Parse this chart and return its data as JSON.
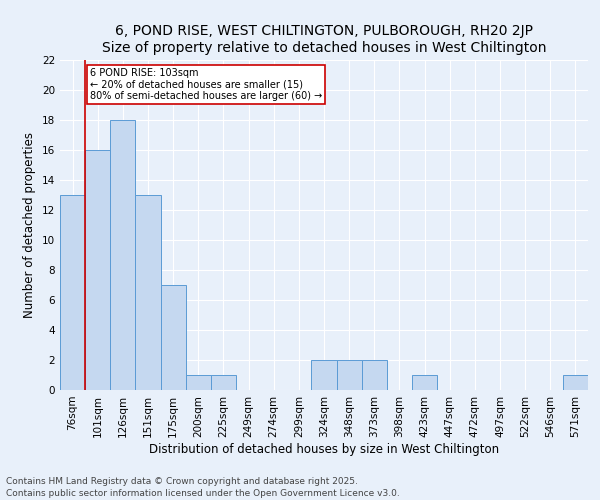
{
  "title1": "6, POND RISE, WEST CHILTINGTON, PULBOROUGH, RH20 2JP",
  "title2": "Size of property relative to detached houses in West Chiltington",
  "xlabel": "Distribution of detached houses by size in West Chiltington",
  "ylabel": "Number of detached properties",
  "categories": [
    "76sqm",
    "101sqm",
    "126sqm",
    "151sqm",
    "175sqm",
    "200sqm",
    "225sqm",
    "249sqm",
    "274sqm",
    "299sqm",
    "324sqm",
    "348sqm",
    "373sqm",
    "398sqm",
    "423sqm",
    "447sqm",
    "472sqm",
    "497sqm",
    "522sqm",
    "546sqm",
    "571sqm"
  ],
  "values": [
    13,
    16,
    18,
    13,
    7,
    1,
    1,
    0,
    0,
    0,
    2,
    2,
    2,
    0,
    1,
    0,
    0,
    0,
    0,
    0,
    1
  ],
  "bar_color": "#c5d8f0",
  "bar_edge_color": "#5b9bd5",
  "annotation_text": "6 POND RISE: 103sqm\n← 20% of detached houses are smaller (15)\n80% of semi-detached houses are larger (60) →",
  "annotation_box_color": "#ffffff",
  "annotation_box_edge": "#cc0000",
  "annotation_fontsize": 7,
  "red_line_color": "#cc0000",
  "ylim": [
    0,
    22
  ],
  "yticks": [
    0,
    2,
    4,
    6,
    8,
    10,
    12,
    14,
    16,
    18,
    20,
    22
  ],
  "title1_fontsize": 10,
  "title2_fontsize": 9,
  "xlabel_fontsize": 8.5,
  "ylabel_fontsize": 8.5,
  "tick_fontsize": 7.5,
  "footnote": "Contains HM Land Registry data © Crown copyright and database right 2025.\nContains public sector information licensed under the Open Government Licence v3.0.",
  "footnote_fontsize": 6.5,
  "background_color": "#e8f0fa",
  "grid_color": "#ffffff"
}
